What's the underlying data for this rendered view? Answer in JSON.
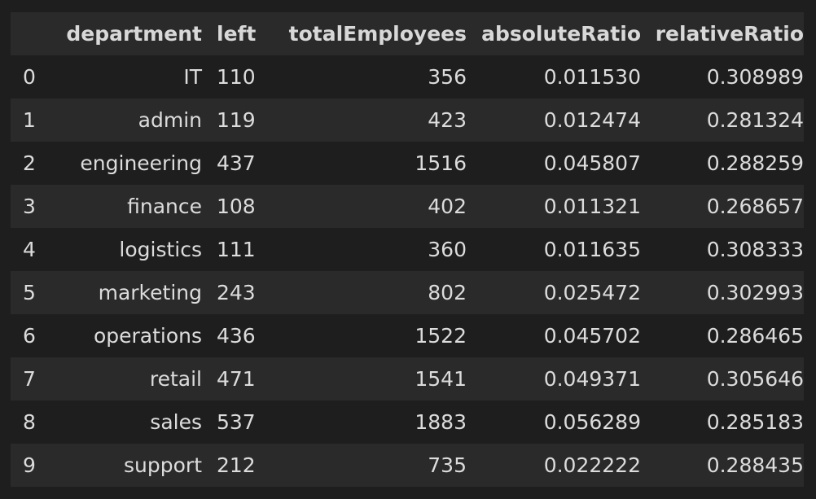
{
  "columns": {
    "index": "",
    "department": "department",
    "left": "left",
    "totalEmployees": "totalEmployees",
    "absoluteRatio": "absoluteRatio",
    "relativeRatio": "relativeRatio"
  },
  "rows": [
    {
      "index": "0",
      "department": "IT",
      "left": "110",
      "totalEmployees": "356",
      "absoluteRatio": "0.011530",
      "relativeRatio": "0.308989"
    },
    {
      "index": "1",
      "department": "admin",
      "left": "119",
      "totalEmployees": "423",
      "absoluteRatio": "0.012474",
      "relativeRatio": "0.281324"
    },
    {
      "index": "2",
      "department": "engineering",
      "left": "437",
      "totalEmployees": "1516",
      "absoluteRatio": "0.045807",
      "relativeRatio": "0.288259"
    },
    {
      "index": "3",
      "department": "finance",
      "left": "108",
      "totalEmployees": "402",
      "absoluteRatio": "0.011321",
      "relativeRatio": "0.268657"
    },
    {
      "index": "4",
      "department": "logistics",
      "left": "111",
      "totalEmployees": "360",
      "absoluteRatio": "0.011635",
      "relativeRatio": "0.308333"
    },
    {
      "index": "5",
      "department": "marketing",
      "left": "243",
      "totalEmployees": "802",
      "absoluteRatio": "0.025472",
      "relativeRatio": "0.302993"
    },
    {
      "index": "6",
      "department": "operations",
      "left": "436",
      "totalEmployees": "1522",
      "absoluteRatio": "0.045702",
      "relativeRatio": "0.286465"
    },
    {
      "index": "7",
      "department": "retail",
      "left": "471",
      "totalEmployees": "1541",
      "absoluteRatio": "0.049371",
      "relativeRatio": "0.305646"
    },
    {
      "index": "8",
      "department": "sales",
      "left": "537",
      "totalEmployees": "1883",
      "absoluteRatio": "0.056289",
      "relativeRatio": "0.285183"
    },
    {
      "index": "9",
      "department": "support",
      "left": "212",
      "totalEmployees": "735",
      "absoluteRatio": "0.022222",
      "relativeRatio": "0.288435"
    }
  ]
}
